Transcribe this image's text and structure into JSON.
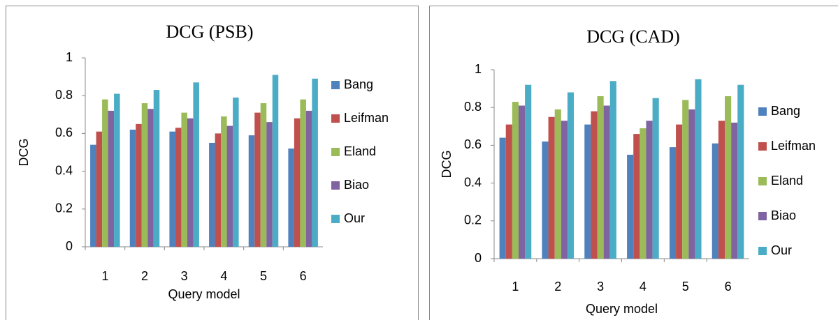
{
  "chart_data": [
    {
      "type": "bar",
      "title": "DCG (PSB)",
      "x_label": "Query model",
      "y_label": "DCG",
      "categories": [
        "1",
        "2",
        "3",
        "4",
        "5",
        "6"
      ],
      "series": [
        {
          "name": "Bang",
          "color": "#4f81bd",
          "values": [
            0.54,
            0.62,
            0.61,
            0.55,
            0.59,
            0.52
          ]
        },
        {
          "name": "Leifman",
          "color": "#c0504d",
          "values": [
            0.61,
            0.65,
            0.63,
            0.6,
            0.71,
            0.68
          ]
        },
        {
          "name": "Eland",
          "color": "#9bbb59",
          "values": [
            0.78,
            0.76,
            0.71,
            0.69,
            0.76,
            0.78
          ]
        },
        {
          "name": "Biao",
          "color": "#8064a2",
          "values": [
            0.72,
            0.73,
            0.68,
            0.64,
            0.66,
            0.72
          ]
        },
        {
          "name": "Our",
          "color": "#4bacc6",
          "values": [
            0.81,
            0.83,
            0.87,
            0.79,
            0.91,
            0.89
          ]
        }
      ],
      "ylim": [
        0,
        1
      ],
      "yticks": [
        0,
        0.2,
        0.4,
        0.6,
        0.8,
        1
      ],
      "legend": "right"
    },
    {
      "type": "bar",
      "title": "DCG (CAD)",
      "x_label": "Query model",
      "y_label": "DCG",
      "categories": [
        "1",
        "2",
        "3",
        "4",
        "5",
        "6"
      ],
      "series": [
        {
          "name": "Bang",
          "color": "#4f81bd",
          "values": [
            0.64,
            0.62,
            0.71,
            0.55,
            0.59,
            0.61
          ]
        },
        {
          "name": "Leifman",
          "color": "#c0504d",
          "values": [
            0.71,
            0.75,
            0.78,
            0.66,
            0.71,
            0.73
          ]
        },
        {
          "name": "Eland",
          "color": "#9bbb59",
          "values": [
            0.83,
            0.79,
            0.86,
            0.69,
            0.84,
            0.86
          ]
        },
        {
          "name": "Biao",
          "color": "#8064a2",
          "values": [
            0.81,
            0.73,
            0.81,
            0.73,
            0.79,
            0.72
          ]
        },
        {
          "name": "Our",
          "color": "#4bacc6",
          "values": [
            0.92,
            0.88,
            0.94,
            0.85,
            0.95,
            0.92
          ]
        }
      ],
      "ylim": [
        0,
        1
      ],
      "yticks": [
        0,
        0.2,
        0.4,
        0.6,
        0.8,
        1
      ],
      "legend": "right"
    }
  ]
}
